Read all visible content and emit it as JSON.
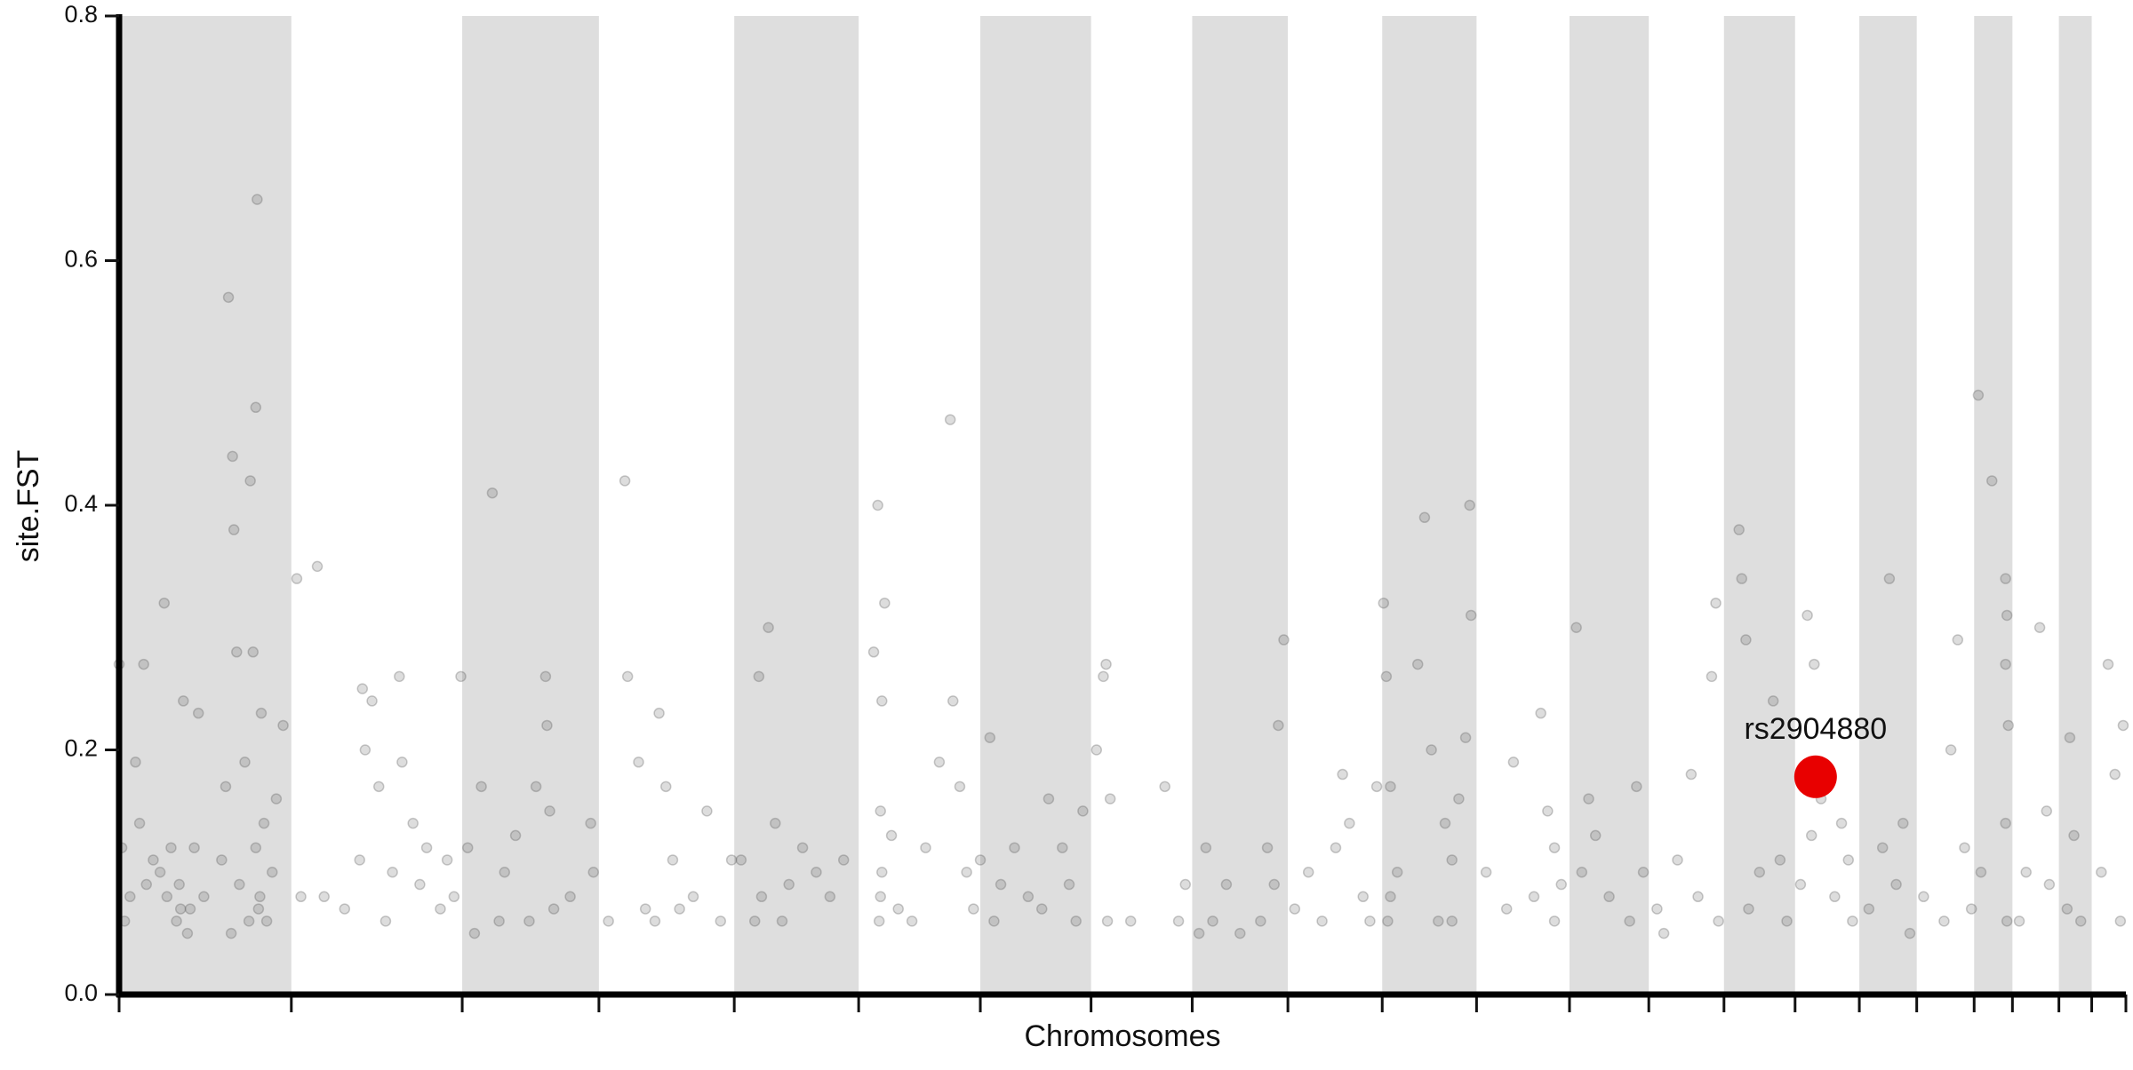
{
  "chart_data": {
    "type": "scatter",
    "y_label": "site.FST",
    "x_label": "Chromosomes",
    "ylim": [
      0,
      0.8
    ],
    "yticks": [
      {
        "value": 0,
        "label": "0.0"
      },
      {
        "value": 0.2,
        "label": "0.2"
      },
      {
        "value": 0.4,
        "label": "0.4"
      },
      {
        "value": 0.6,
        "label": "0.6"
      },
      {
        "value": 0.8,
        "label": "0.8"
      }
    ],
    "xlim": [
      0,
      1468
    ],
    "chromosome_boundaries": [
      0,
      126,
      251,
      351,
      450,
      541,
      630,
      711,
      785,
      855,
      924,
      993,
      1061,
      1119,
      1174,
      1226,
      1273,
      1315,
      1357,
      1385,
      1419,
      1443,
      1468
    ],
    "band_color": "#dedede",
    "color": "#555555",
    "x": [
      0,
      2,
      4,
      8,
      12,
      15,
      18,
      20,
      25,
      30,
      33,
      38,
      42,
      44,
      47,
      52,
      55,
      58,
      62,
      75,
      78,
      80,
      82,
      83,
      84,
      86,
      88,
      92,
      96,
      98,
      100,
      101,
      102,
      104,
      106,
      108,
      112,
      115,
      120,
      45,
      50,
      35,
      95,
      100,
      103,
      133,
      145,
      150,
      165,
      178,
      180,
      185,
      190,
      195,
      205,
      207,
      215,
      220,
      225,
      235,
      240,
      245,
      130,
      176,
      200,
      250,
      255,
      265,
      273,
      278,
      282,
      290,
      300,
      312,
      313,
      315,
      318,
      330,
      345,
      347,
      260,
      305,
      358,
      370,
      372,
      385,
      395,
      400,
      405,
      410,
      420,
      430,
      440,
      448,
      380,
      392,
      455,
      468,
      470,
      475,
      480,
      485,
      490,
      500,
      510,
      520,
      530,
      465,
      552,
      555,
      556,
      557,
      558,
      560,
      565,
      570,
      580,
      590,
      600,
      608,
      610,
      615,
      620,
      625,
      558,
      557,
      637,
      640,
      645,
      655,
      665,
      675,
      680,
      690,
      700,
      705,
      695,
      630,
      715,
      720,
      722,
      725,
      740,
      765,
      775,
      780,
      790,
      723,
      795,
      800,
      810,
      820,
      835,
      845,
      848,
      852,
      840,
      860,
      870,
      880,
      890,
      895,
      900,
      910,
      920,
      915,
      925,
      927,
      928,
      930,
      935,
      950,
      955,
      960,
      965,
      970,
      975,
      980,
      985,
      988,
      989,
      930,
      975,
      1000,
      1015,
      1020,
      1035,
      1040,
      1045,
      1050,
      1055,
      1050,
      1066,
      1070,
      1075,
      1080,
      1090,
      1105,
      1110,
      1115,
      1125,
      1130,
      1140,
      1150,
      1155,
      1165,
      1168,
      1170,
      1185,
      1187,
      1190,
      1192,
      1200,
      1210,
      1215,
      1220,
      1230,
      1235,
      1240,
      1238,
      1245,
      1255,
      1260,
      1268,
      1265,
      1280,
      1290,
      1295,
      1300,
      1310,
      1305,
      1320,
      1335,
      1340,
      1345,
      1350,
      1355,
      1360,
      1362,
      1370,
      1380,
      1381,
      1382,
      1381,
      1380,
      1380,
      1390,
      1395,
      1405,
      1410,
      1412,
      1425,
      1427,
      1430,
      1435,
      1450,
      1455,
      1460,
      1464,
      1466
    ],
    "values": [
      0.27,
      0.12,
      0.06,
      0.08,
      0.19,
      0.14,
      0.27,
      0.09,
      0.11,
      0.1,
      0.32,
      0.12,
      0.06,
      0.09,
      0.24,
      0.07,
      0.12,
      0.23,
      0.08,
      0.11,
      0.17,
      0.57,
      0.05,
      0.44,
      0.38,
      0.28,
      0.09,
      0.19,
      0.42,
      0.28,
      0.48,
      0.65,
      0.07,
      0.23,
      0.14,
      0.06,
      0.1,
      0.16,
      0.22,
      0.07,
      0.05,
      0.08,
      0.06,
      0.12,
      0.08,
      0.08,
      0.35,
      0.08,
      0.07,
      0.25,
      0.2,
      0.24,
      0.17,
      0.06,
      0.26,
      0.19,
      0.14,
      0.09,
      0.12,
      0.07,
      0.11,
      0.08,
      0.34,
      0.11,
      0.1,
      0.26,
      0.12,
      0.17,
      0.41,
      0.06,
      0.1,
      0.13,
      0.06,
      0.26,
      0.22,
      0.15,
      0.07,
      0.08,
      0.14,
      0.1,
      0.05,
      0.17,
      0.06,
      0.42,
      0.26,
      0.07,
      0.23,
      0.17,
      0.11,
      0.07,
      0.08,
      0.15,
      0.06,
      0.11,
      0.19,
      0.06,
      0.11,
      0.26,
      0.08,
      0.3,
      0.14,
      0.06,
      0.09,
      0.12,
      0.1,
      0.08,
      0.11,
      0.06,
      0.28,
      0.4,
      0.06,
      0.15,
      0.1,
      0.32,
      0.13,
      0.07,
      0.06,
      0.12,
      0.19,
      0.47,
      0.24,
      0.17,
      0.1,
      0.07,
      0.24,
      0.08,
      0.21,
      0.06,
      0.09,
      0.12,
      0.08,
      0.07,
      0.16,
      0.12,
      0.06,
      0.15,
      0.09,
      0.11,
      0.2,
      0.26,
      0.27,
      0.16,
      0.06,
      0.17,
      0.06,
      0.09,
      0.05,
      0.06,
      0.12,
      0.06,
      0.09,
      0.05,
      0.06,
      0.09,
      0.22,
      0.29,
      0.12,
      0.07,
      0.1,
      0.06,
      0.12,
      0.18,
      0.14,
      0.08,
      0.17,
      0.06,
      0.32,
      0.26,
      0.06,
      0.17,
      0.1,
      0.27,
      0.39,
      0.2,
      0.06,
      0.14,
      0.11,
      0.16,
      0.21,
      0.4,
      0.31,
      0.08,
      0.06,
      0.1,
      0.07,
      0.19,
      0.08,
      0.23,
      0.15,
      0.06,
      0.09,
      0.12,
      0.3,
      0.1,
      0.16,
      0.13,
      0.08,
      0.06,
      0.17,
      0.1,
      0.07,
      0.05,
      0.11,
      0.18,
      0.08,
      0.26,
      0.32,
      0.06,
      0.38,
      0.34,
      0.29,
      0.07,
      0.1,
      0.24,
      0.11,
      0.06,
      0.09,
      0.31,
      0.27,
      0.13,
      0.16,
      0.08,
      0.14,
      0.06,
      0.11,
      0.07,
      0.12,
      0.34,
      0.09,
      0.05,
      0.14,
      0.08,
      0.06,
      0.2,
      0.29,
      0.12,
      0.07,
      0.49,
      0.1,
      0.42,
      0.34,
      0.31,
      0.22,
      0.06,
      0.14,
      0.27,
      0.06,
      0.1,
      0.3,
      0.15,
      0.09,
      0.07,
      0.21,
      0.13,
      0.06,
      0.1,
      0.27,
      0.18,
      0.06,
      0.22
    ],
    "highlight": {
      "label": "rs2904880",
      "x": 1241,
      "value": 0.178,
      "color": "#e80000"
    }
  }
}
